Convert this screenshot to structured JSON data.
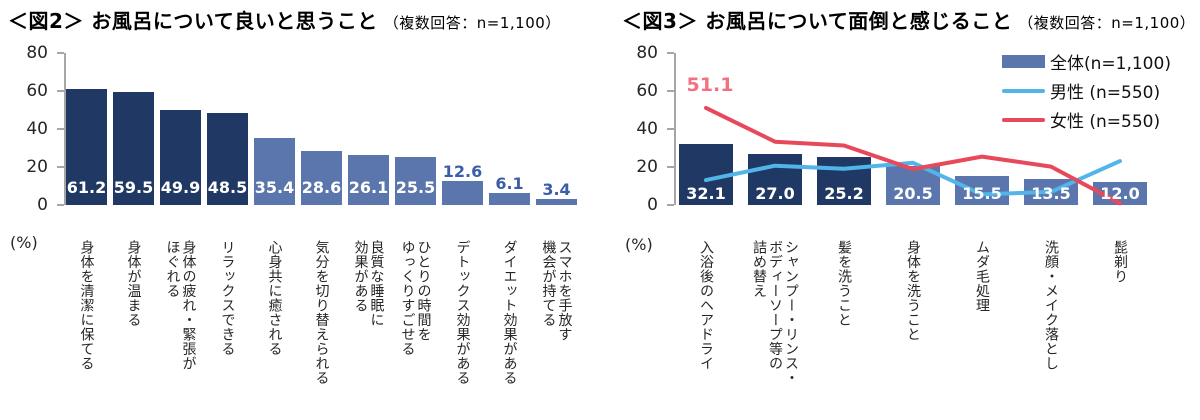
{
  "colors": {
    "bar_dark": "#1f3864",
    "bar_light": "#5b76ac",
    "value_inside": "#ffffff",
    "value_outside": "#3b5ea8",
    "male_line": "#52b5e9",
    "female_line": "#e8495a",
    "female_point_label": "#f2707f",
    "axis": "#a6a6a6",
    "background": "#ffffff"
  },
  "chart_data": [
    {
      "id": "fig2",
      "type": "bar",
      "title": "＜図2＞ お風呂について良いと思うこと",
      "note": "（複数回答：n=1,100）",
      "unit_label": "(%)",
      "ylim": [
        0,
        80
      ],
      "yticks": [
        0,
        20,
        40,
        60,
        80
      ],
      "grid": false,
      "categories": [
        "身体を清潔に保てる",
        "身体が温まる",
        "身体の疲れ・緊張が\nほぐれる",
        "リラックスできる",
        "心身共に癒される",
        "気分を切り替えられる",
        "良質な睡眠に\n効果がある",
        "ひとりの時間を\nゆっくりすごせる",
        "デトックス効果がある",
        "ダイエット効果がある",
        "スマホを手放す\n機会が持てる"
      ],
      "values": [
        61.2,
        59.5,
        49.9,
        48.5,
        35.4,
        28.6,
        26.1,
        25.5,
        12.6,
        6.1,
        3.4
      ],
      "dark_bar_count": 4,
      "inside_label_min": 20
    },
    {
      "id": "fig3",
      "type": "bar+line",
      "title": "＜図3＞ お風呂について面倒と感じること",
      "note": "（複数回答：n=1,100）",
      "unit_label": "(%)",
      "ylim": [
        0,
        80
      ],
      "yticks": [
        0,
        20,
        40,
        60,
        80
      ],
      "grid": false,
      "legend_position": "top-right",
      "categories": [
        "入浴後のヘアドライ",
        "シャンプー・リンス・\nボディーソープ等の\n詰め替え",
        "髪を洗うこと",
        "身体を洗うこと",
        "ムダ毛処理",
        "洗顔・メイク落とし",
        "髭剃り"
      ],
      "dark_bar_count": 3,
      "inside_label_min": 0,
      "series": [
        {
          "name": "全体(n=1,100)",
          "type": "bar",
          "color": "#5b76ac",
          "values": [
            32.1,
            27.0,
            25.2,
            20.5,
            15.5,
            13.5,
            12.0
          ]
        },
        {
          "name": "男性 (n=550)",
          "type": "line",
          "color": "#52b5e9",
          "data_name": "male-line",
          "values": [
            13.1,
            20.7,
            19.1,
            22.2,
            5.6,
            6.9,
            23.1
          ]
        },
        {
          "name": "女性 (n=550)",
          "type": "line",
          "color": "#e8495a",
          "data_name": "female-line",
          "values": [
            51.1,
            33.3,
            31.3,
            18.9,
            25.5,
            20.2,
            0.9
          ]
        }
      ],
      "point_label": {
        "text": "51.1",
        "series": "女性 (n=550)",
        "category": "入浴後のヘアドライ"
      }
    }
  ]
}
